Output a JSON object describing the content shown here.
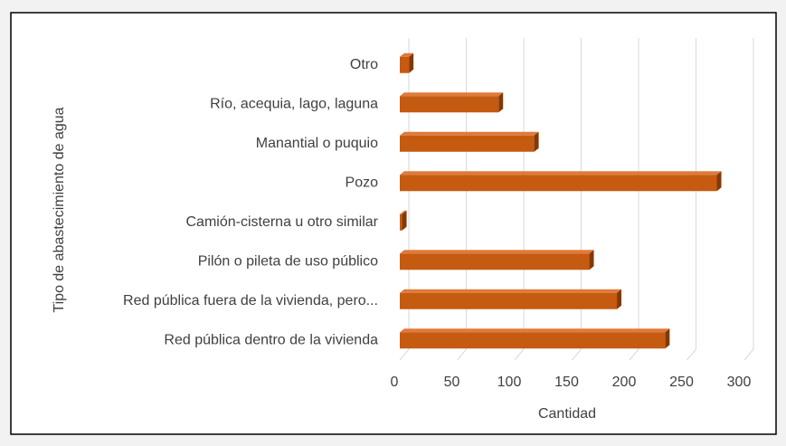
{
  "chart_data": {
    "type": "bar",
    "orientation": "horizontal",
    "y_axis_label": "Tipo de abastecimiento de agua",
    "x_axis_label": "Cantidad",
    "categories": [
      "Red pública dentro de la vivienda",
      "Red pública fuera de la vivienda, pero...",
      "Pilón o pileta de uso público",
      "Camión-cisterna u otro similar",
      "Pozo",
      "Manantial o puquio",
      "Río, acequia, lago, laguna",
      "Otro"
    ],
    "values": [
      231,
      189,
      165,
      2,
      276,
      117,
      86,
      8
    ],
    "color": "#c55a11",
    "xlim": [
      0,
      300
    ],
    "xticks": [
      0,
      50,
      100,
      150,
      200,
      250,
      300
    ],
    "grid": true
  }
}
